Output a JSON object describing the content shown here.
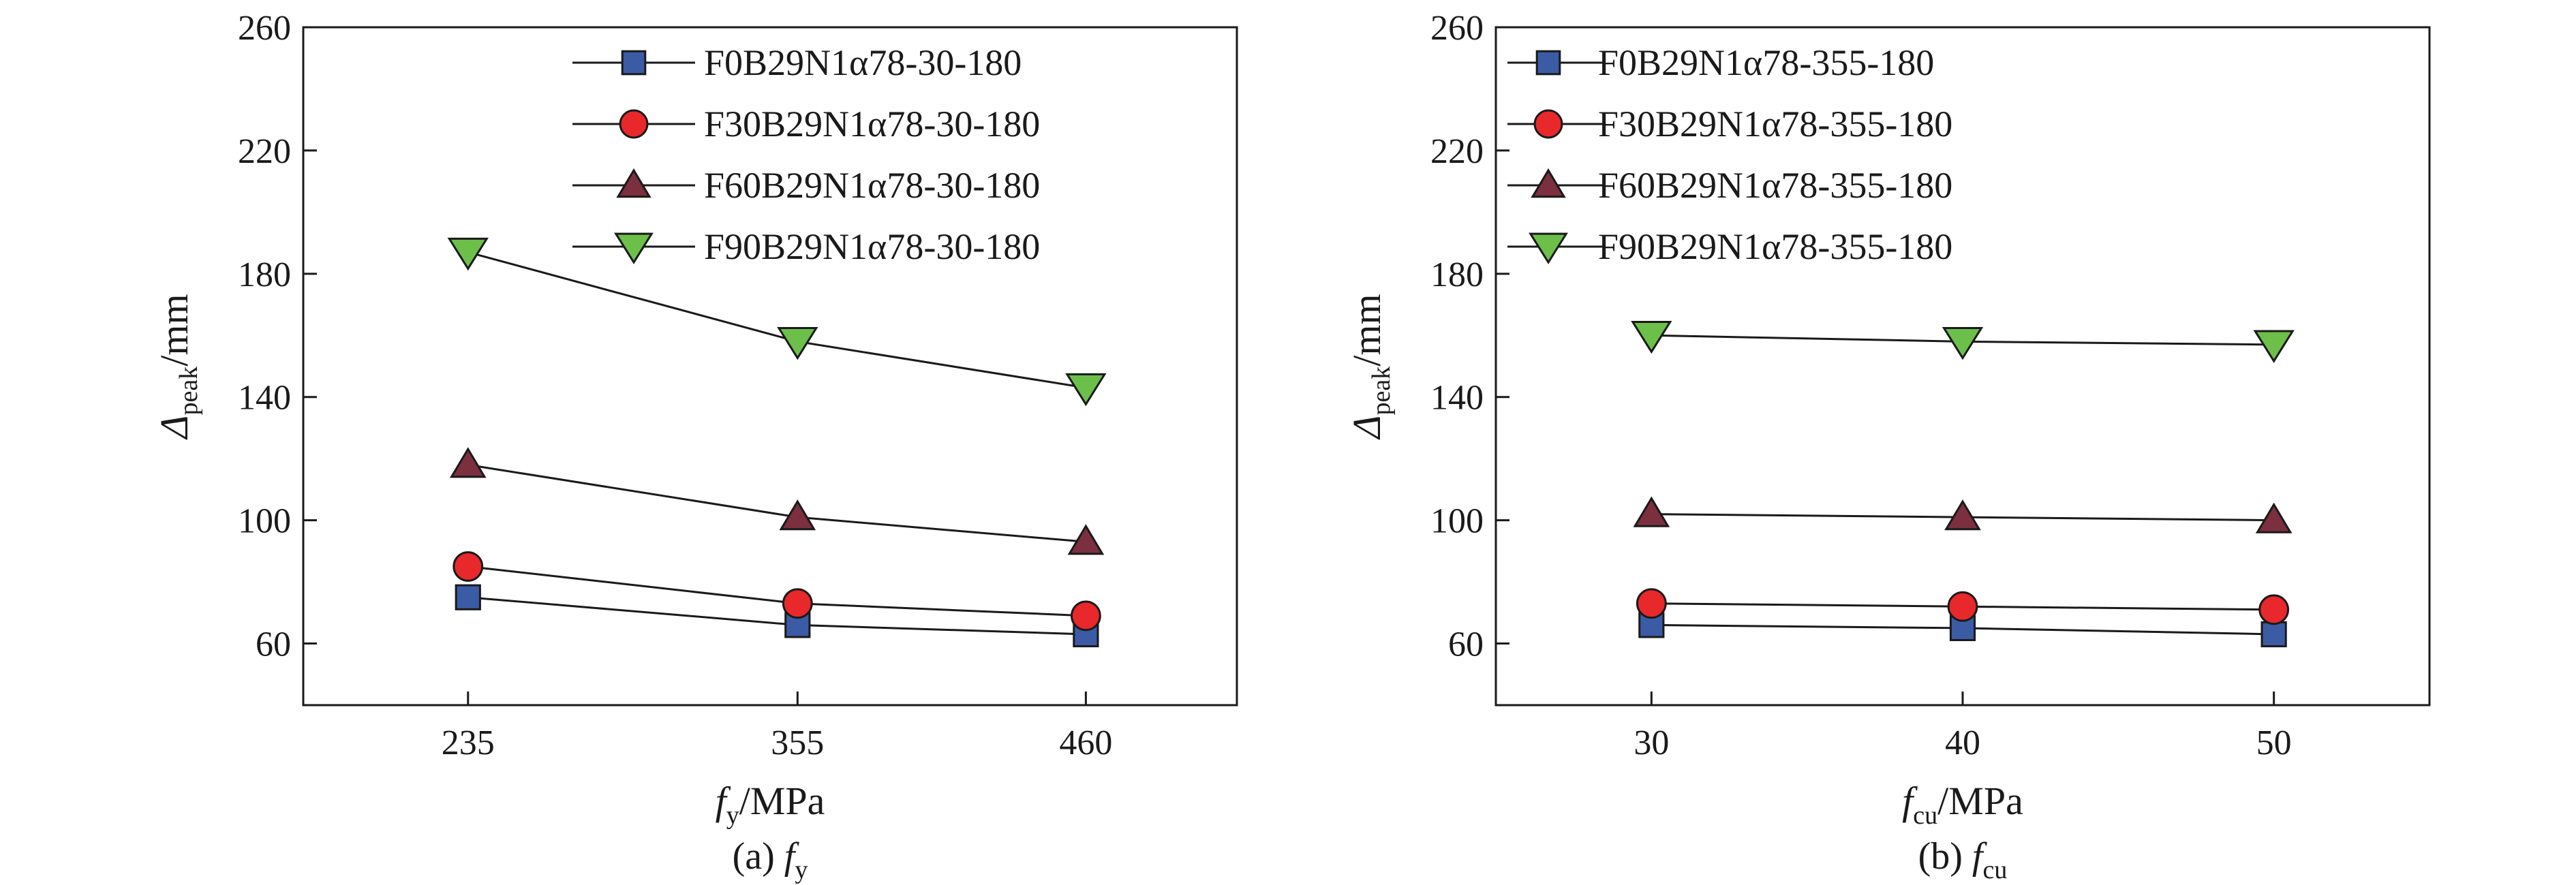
{
  "chart_data": [
    {
      "type": "line",
      "caption": "(a) f_y",
      "caption_prefix": "(a) ",
      "caption_var": "f",
      "caption_sub": "y",
      "xlabel_var": "f",
      "xlabel_sub": "y",
      "xlabel_unit": "/MPa",
      "ylabel_var": "Δ",
      "ylabel_sub": "peak",
      "ylabel_unit": "/mm",
      "x": [
        235,
        355,
        460
      ],
      "x_ticks": [
        "235",
        "355",
        "460"
      ],
      "xlim": [
        175,
        515
      ],
      "ylim": [
        40,
        260
      ],
      "y_ticks": [
        60,
        100,
        140,
        180,
        220,
        260
      ],
      "grid": false,
      "legend_position": "top-right",
      "series": [
        {
          "name": "F0B29N1α78-30-180",
          "marker": "square",
          "color": "#3b5ba5",
          "values": [
            75,
            66,
            63
          ]
        },
        {
          "name": "F30B29N1α78-30-180",
          "marker": "circle",
          "color": "#e8282b",
          "values": [
            85,
            73,
            69
          ]
        },
        {
          "name": "F60B29N1α78-30-180",
          "marker": "triangle-up",
          "color": "#7b2f3f",
          "values": [
            118,
            101,
            93
          ]
        },
        {
          "name": "F90B29N1α78-30-180",
          "marker": "triangle-down",
          "color": "#6cc04a",
          "values": [
            187,
            158,
            143
          ]
        }
      ]
    },
    {
      "type": "line",
      "caption": "(b) f_cu",
      "caption_prefix": "(b) ",
      "caption_var": "f",
      "caption_sub": "cu",
      "xlabel_var": "f",
      "xlabel_sub": "cu",
      "xlabel_unit": "/MPa",
      "ylabel_var": "Δ",
      "ylabel_sub": "peak",
      "ylabel_unit": "/mm",
      "x": [
        30,
        40,
        50
      ],
      "x_ticks": [
        "30",
        "40",
        "50"
      ],
      "xlim": [
        25,
        55
      ],
      "ylim": [
        40,
        260
      ],
      "y_ticks": [
        60,
        100,
        140,
        180,
        220,
        260
      ],
      "grid": false,
      "legend_position": "top-left",
      "series": [
        {
          "name": "F0B29N1α78-355-180",
          "marker": "square",
          "color": "#3b5ba5",
          "values": [
            66,
            65,
            63
          ]
        },
        {
          "name": "F30B29N1α78-355-180",
          "marker": "circle",
          "color": "#e8282b",
          "values": [
            73,
            72,
            71
          ]
        },
        {
          "name": "F60B29N1α78-355-180",
          "marker": "triangle-up",
          "color": "#7b2f3f",
          "values": [
            102,
            101,
            100
          ]
        },
        {
          "name": "F90B29N1α78-355-180",
          "marker": "triangle-down",
          "color": "#6cc04a",
          "values": [
            160,
            158,
            157
          ]
        }
      ]
    }
  ]
}
